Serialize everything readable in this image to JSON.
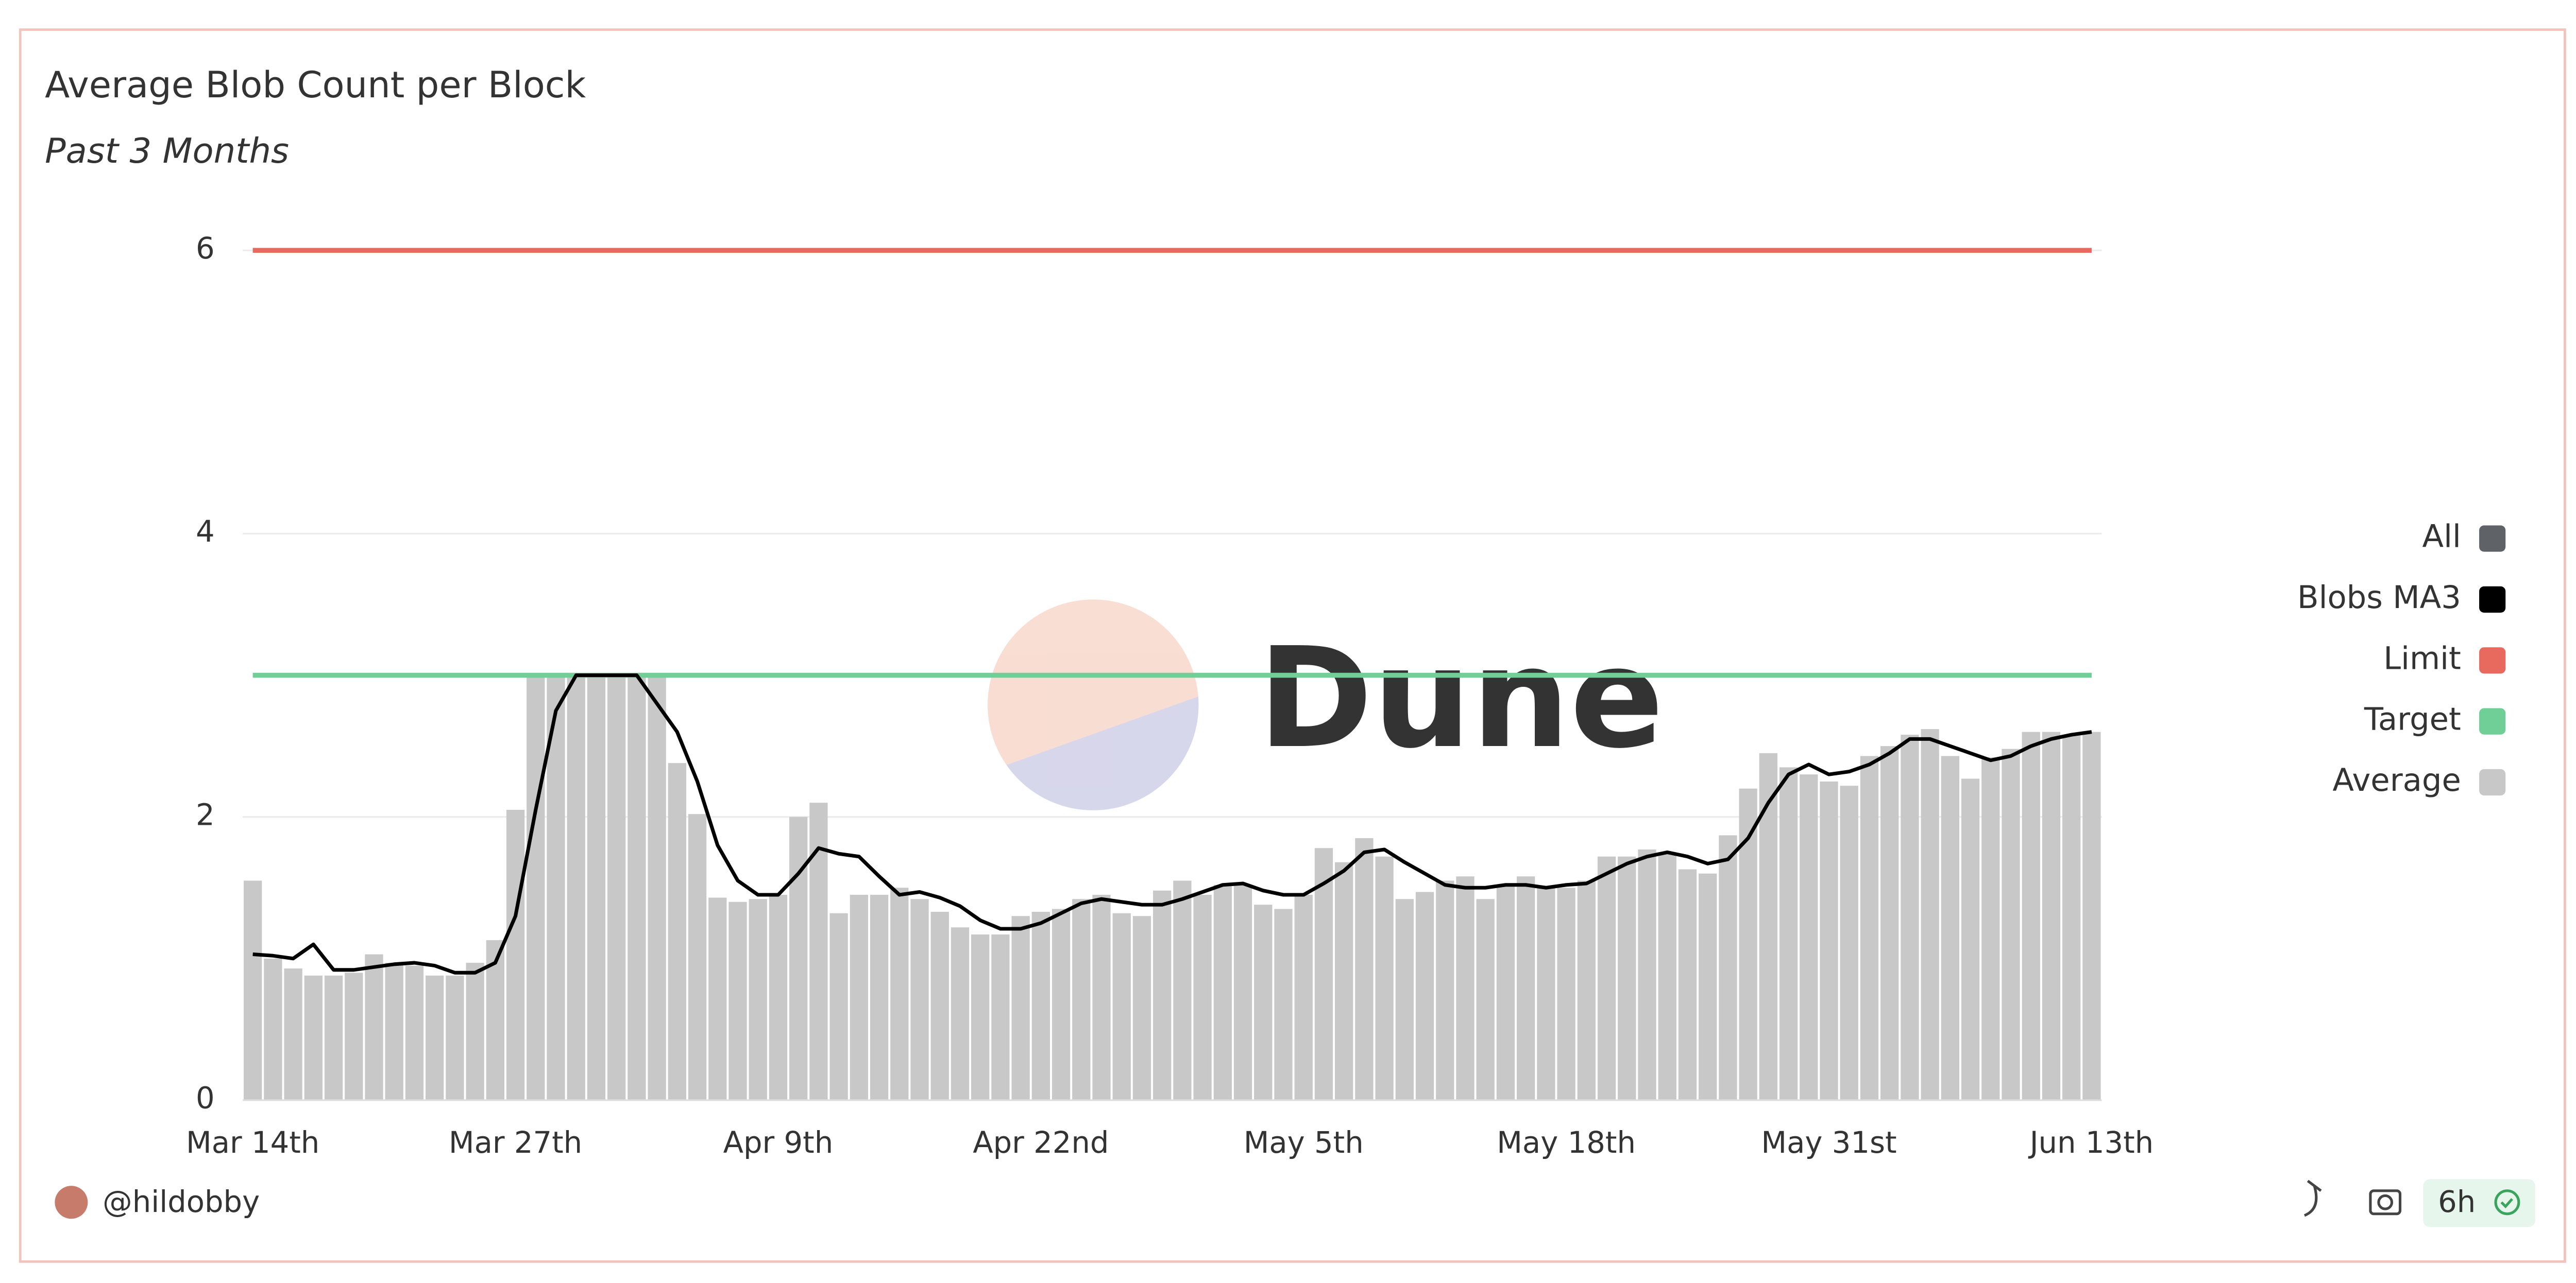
{
  "chart_data": {
    "type": "bar",
    "title": "Average Blob Count per Block",
    "subtitle": "Past 3 Months",
    "watermark": "Dune",
    "author": "@hildobby",
    "refresh": "6h",
    "categories": [
      "Mar 14th",
      null,
      null,
      null,
      null,
      null,
      null,
      null,
      null,
      null,
      null,
      null,
      null,
      "Mar 27th",
      null,
      null,
      null,
      null,
      null,
      null,
      null,
      null,
      null,
      null,
      null,
      null,
      "Apr 9th",
      null,
      null,
      null,
      null,
      null,
      null,
      null,
      null,
      null,
      null,
      null,
      null,
      "Apr 22nd",
      null,
      null,
      null,
      null,
      null,
      null,
      null,
      null,
      null,
      null,
      null,
      null,
      "May 5th",
      null,
      null,
      null,
      null,
      null,
      null,
      null,
      null,
      null,
      null,
      null,
      null,
      "May 18th",
      null,
      null,
      null,
      null,
      null,
      null,
      null,
      null,
      null,
      null,
      null,
      null,
      "May 31st",
      null,
      null,
      null,
      null,
      null,
      null,
      null,
      null,
      null,
      null,
      null,
      null,
      "Jun 13th"
    ],
    "ylim": [
      0,
      6.2
    ],
    "yticks": [
      0,
      2,
      4,
      6
    ],
    "grid": true,
    "legend": "right",
    "series": [
      {
        "name": "All",
        "color": "#5f6368"
      },
      {
        "name": "Blobs MA3",
        "color": "#000000",
        "kind": "line",
        "values": [
          1.03,
          1.02,
          1.0,
          1.1,
          0.92,
          0.92,
          0.94,
          0.96,
          0.97,
          0.95,
          0.9,
          0.9,
          0.97,
          1.3,
          2.05,
          2.75,
          3.0,
          3.0,
          3.0,
          3.0,
          2.8,
          2.6,
          2.25,
          1.8,
          1.55,
          1.45,
          1.45,
          1.6,
          1.78,
          1.74,
          1.72,
          1.58,
          1.45,
          1.47,
          1.43,
          1.37,
          1.27,
          1.21,
          1.21,
          1.25,
          1.32,
          1.39,
          1.42,
          1.4,
          1.38,
          1.38,
          1.42,
          1.47,
          1.52,
          1.53,
          1.48,
          1.45,
          1.45,
          1.53,
          1.62,
          1.75,
          1.77,
          1.68,
          1.6,
          1.52,
          1.5,
          1.5,
          1.52,
          1.52,
          1.5,
          1.52,
          1.53,
          1.6,
          1.67,
          1.72,
          1.75,
          1.72,
          1.67,
          1.7,
          1.85,
          2.1,
          2.3,
          2.37,
          2.3,
          2.32,
          2.37,
          2.45,
          2.55,
          2.55,
          2.5,
          2.45,
          2.4,
          2.43,
          2.5,
          2.55,
          2.58,
          2.6
        ]
      },
      {
        "name": "Limit",
        "color": "#e8695e",
        "kind": "hline",
        "value": 6
      },
      {
        "name": "Target",
        "color": "#6fcf97",
        "kind": "hline",
        "value": 3
      },
      {
        "name": "Average",
        "color": "#c8c8c8",
        "kind": "bar",
        "values": [
          1.55,
          1.0,
          0.93,
          0.88,
          0.88,
          0.9,
          1.03,
          0.97,
          0.95,
          0.88,
          0.88,
          0.97,
          1.13,
          2.05,
          3.0,
          3.0,
          3.0,
          3.0,
          3.0,
          3.0,
          3.0,
          2.38,
          2.02,
          1.43,
          1.4,
          1.42,
          1.45,
          2.0,
          2.1,
          1.32,
          1.45,
          1.45,
          1.5,
          1.42,
          1.33,
          1.22,
          1.17,
          1.17,
          1.3,
          1.33,
          1.35,
          1.42,
          1.45,
          1.32,
          1.3,
          1.48,
          1.55,
          1.45,
          1.52,
          1.52,
          1.38,
          1.35,
          1.45,
          1.78,
          1.68,
          1.85,
          1.72,
          1.42,
          1.47,
          1.55,
          1.58,
          1.42,
          1.52,
          1.58,
          1.5,
          1.5,
          1.55,
          1.72,
          1.72,
          1.77,
          1.75,
          1.63,
          1.6,
          1.87,
          2.2,
          2.45,
          2.35,
          2.3,
          2.25,
          2.22,
          2.43,
          2.5,
          2.58,
          2.62,
          2.43,
          2.27,
          2.42,
          2.48,
          2.6,
          2.6,
          2.58,
          2.6
        ]
      }
    ]
  }
}
